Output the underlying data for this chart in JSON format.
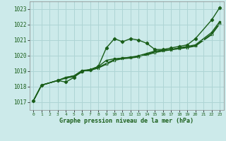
{
  "background_color": "#cceaea",
  "grid_color": "#aed4d4",
  "line_color": "#1a5e1a",
  "title": "Graphe pression niveau de la mer (hPa)",
  "xlim": [
    -0.5,
    23.5
  ],
  "ylim": [
    1016.5,
    1023.5
  ],
  "yticks": [
    1017,
    1018,
    1019,
    1020,
    1021,
    1022,
    1023
  ],
  "xticks": [
    0,
    1,
    2,
    3,
    4,
    5,
    6,
    7,
    8,
    9,
    10,
    11,
    12,
    13,
    14,
    15,
    16,
    17,
    18,
    19,
    20,
    21,
    22,
    23
  ],
  "series": [
    [
      1017.1,
      1018.1,
      1018.4,
      1018.3,
      1018.6,
      1019.0,
      1019.1,
      1019.3,
      1020.5,
      1021.1,
      1020.9,
      1021.1,
      1021.0,
      1020.8,
      1020.4,
      1020.4,
      1020.5,
      1020.6,
      1020.7,
      1021.1,
      1022.3,
      1023.1
    ],
    [
      1017.1,
      1018.1,
      1018.4,
      1018.6,
      1018.7,
      1019.05,
      1019.1,
      1019.3,
      1019.7,
      1019.8,
      1019.85,
      1019.9,
      1020.0,
      1020.15,
      1020.3,
      1020.35,
      1020.4,
      1020.5,
      1020.6,
      1020.7,
      1021.5,
      1022.2
    ],
    [
      1017.1,
      1018.1,
      1018.4,
      1018.6,
      1018.7,
      1019.0,
      1019.1,
      1019.25,
      1019.5,
      1019.75,
      1019.85,
      1019.9,
      1019.95,
      1020.1,
      1020.25,
      1020.35,
      1020.4,
      1020.5,
      1020.55,
      1020.65,
      1021.4,
      1022.1
    ],
    [
      1017.1,
      1018.1,
      1018.4,
      1018.55,
      1018.65,
      1018.95,
      1019.05,
      1019.2,
      1019.45,
      1019.7,
      1019.8,
      1019.85,
      1019.92,
      1020.05,
      1020.2,
      1020.3,
      1020.38,
      1020.45,
      1020.52,
      1020.62,
      1021.35,
      1022.05
    ]
  ],
  "series_x": [
    [
      0,
      1,
      3,
      4,
      5,
      6,
      7,
      8,
      9,
      10,
      11,
      12,
      13,
      14,
      15,
      16,
      17,
      18,
      19,
      20,
      22,
      23
    ],
    [
      0,
      1,
      3,
      4,
      5,
      6,
      7,
      8,
      9,
      10,
      11,
      12,
      13,
      14,
      15,
      16,
      17,
      18,
      19,
      20,
      22,
      23
    ],
    [
      0,
      1,
      3,
      4,
      5,
      6,
      7,
      8,
      9,
      10,
      11,
      12,
      13,
      14,
      15,
      16,
      17,
      18,
      19,
      20,
      22,
      23
    ],
    [
      0,
      1,
      3,
      4,
      5,
      6,
      7,
      8,
      9,
      10,
      11,
      12,
      13,
      14,
      15,
      16,
      17,
      18,
      19,
      20,
      22,
      23
    ]
  ]
}
